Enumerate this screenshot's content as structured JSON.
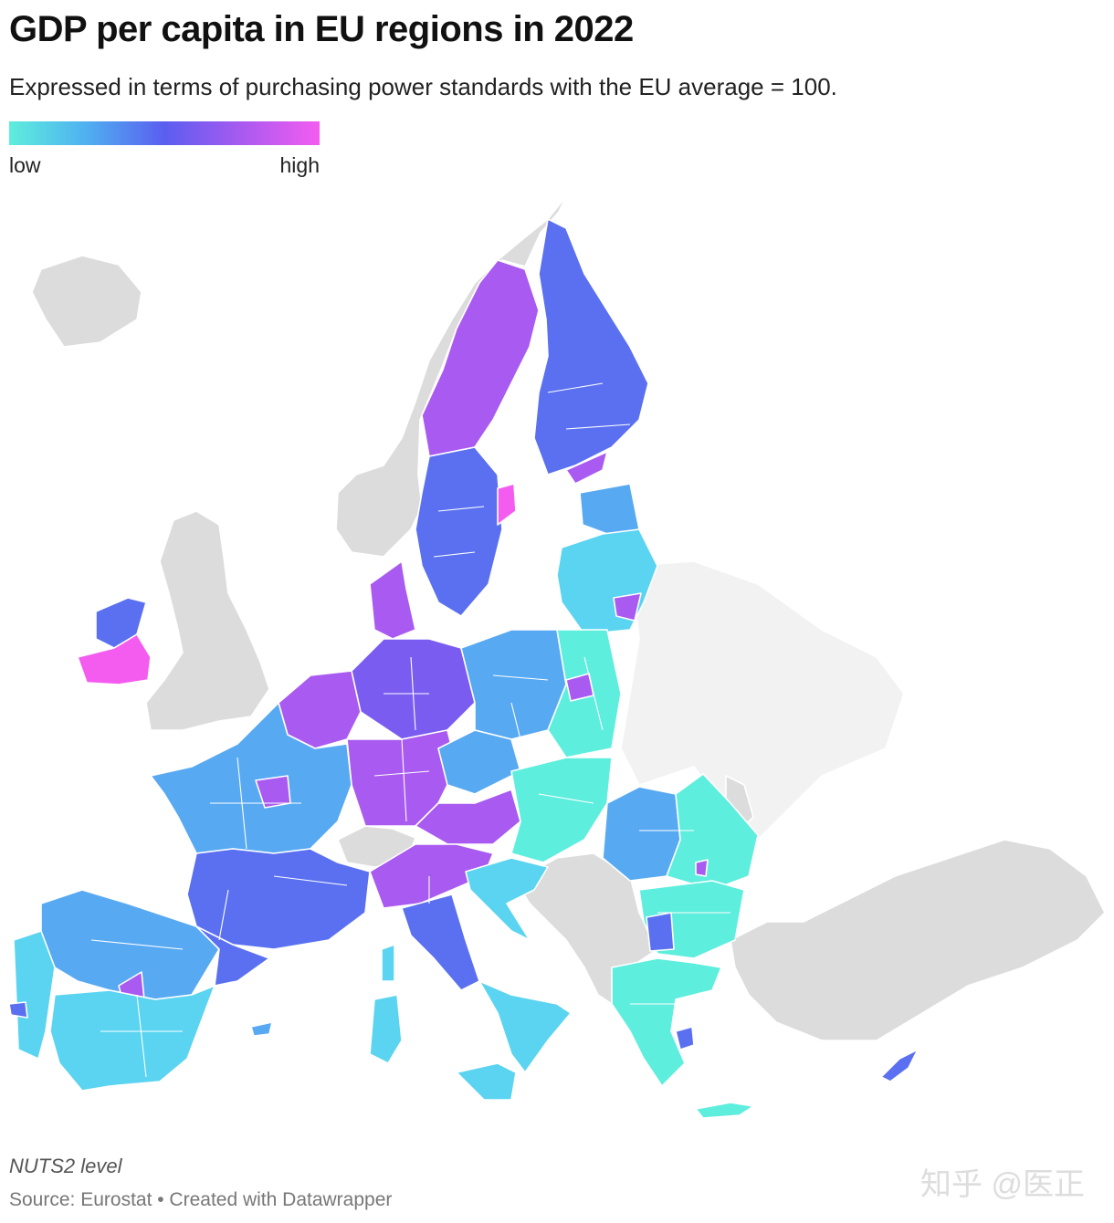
{
  "header": {
    "title": "GDP per capita in EU regions in 2022",
    "subtitle": "Expressed in terms of purchasing power standards with the EU average = 100."
  },
  "legend": {
    "low_label": "low",
    "high_label": "high",
    "gradient": [
      "#5eeedd",
      "#4fb0f0",
      "#5a5ef0",
      "#a95af0",
      "#f45cf0"
    ]
  },
  "footer": {
    "note": "NUTS2 level",
    "source": "Source: Eurostat • Created with Datawrapper"
  },
  "watermark": {
    "text": "知乎 @医正"
  },
  "colors": {
    "no_data": "#dcdcdc",
    "non_eu_light": "#f2f2f2",
    "very_low": "#5eeedd",
    "low": "#5ad4f0",
    "mid_low": "#57a9f2",
    "mid": "#5a70f0",
    "mid_high": "#7a5cf0",
    "high": "#a95af0",
    "very_high": "#f45cf0"
  },
  "map": {
    "regions": [
      {
        "name": "iceland",
        "level": "no_data"
      },
      {
        "name": "norway",
        "level": "no_data"
      },
      {
        "name": "great-britain",
        "level": "no_data"
      },
      {
        "name": "switzerland",
        "level": "no_data"
      },
      {
        "name": "balkans",
        "level": "no_data"
      },
      {
        "name": "turkey",
        "level": "no_data"
      },
      {
        "name": "ukraine-belarus",
        "level": "non_eu_light"
      },
      {
        "name": "moldova",
        "level": "no_data"
      },
      {
        "name": "northern-sweden",
        "level": "high"
      },
      {
        "name": "southern-sweden",
        "level": "mid"
      },
      {
        "name": "stockholm",
        "level": "very_high"
      },
      {
        "name": "finland",
        "level": "mid"
      },
      {
        "name": "helsinki",
        "level": "high"
      },
      {
        "name": "estonia",
        "level": "mid_low"
      },
      {
        "name": "latvia-lithuania",
        "level": "low"
      },
      {
        "name": "vilnius",
        "level": "high"
      },
      {
        "name": "denmark",
        "level": "high"
      },
      {
        "name": "northern-ireland",
        "level": "mid"
      },
      {
        "name": "ireland-south",
        "level": "very_high"
      },
      {
        "name": "benelux",
        "level": "high"
      },
      {
        "name": "northern-germany",
        "level": "mid_high"
      },
      {
        "name": "southern-germany",
        "level": "high"
      },
      {
        "name": "austria",
        "level": "high"
      },
      {
        "name": "poland-west",
        "level": "mid_low"
      },
      {
        "name": "poland-east",
        "level": "very_low"
      },
      {
        "name": "warsaw",
        "level": "high"
      },
      {
        "name": "czechia",
        "level": "mid_low"
      },
      {
        "name": "slovakia-hungary",
        "level": "very_low"
      },
      {
        "name": "romania-west",
        "level": "mid_low"
      },
      {
        "name": "romania-east",
        "level": "very_low"
      },
      {
        "name": "bucharest",
        "level": "high"
      },
      {
        "name": "bulgaria",
        "level": "very_low"
      },
      {
        "name": "sofia",
        "level": "mid"
      },
      {
        "name": "france-north",
        "level": "mid_low"
      },
      {
        "name": "paris",
        "level": "high"
      },
      {
        "name": "france-south",
        "level": "mid"
      },
      {
        "name": "northern-italy",
        "level": "high"
      },
      {
        "name": "central-italy",
        "level": "mid"
      },
      {
        "name": "southern-italy",
        "level": "low"
      },
      {
        "name": "sardinia",
        "level": "low"
      },
      {
        "name": "corsica",
        "level": "low"
      },
      {
        "name": "croatia-slovenia",
        "level": "low"
      },
      {
        "name": "greece",
        "level": "very_low"
      },
      {
        "name": "athens",
        "level": "mid"
      },
      {
        "name": "crete",
        "level": "very_low"
      },
      {
        "name": "cyprus",
        "level": "mid"
      },
      {
        "name": "spain-north",
        "level": "mid_low"
      },
      {
        "name": "madrid",
        "level": "high"
      },
      {
        "name": "catalonia",
        "level": "mid"
      },
      {
        "name": "spain-south",
        "level": "low"
      },
      {
        "name": "portugal",
        "level": "low"
      },
      {
        "name": "lisbon",
        "level": "mid"
      },
      {
        "name": "balearics",
        "level": "mid_low"
      }
    ]
  }
}
